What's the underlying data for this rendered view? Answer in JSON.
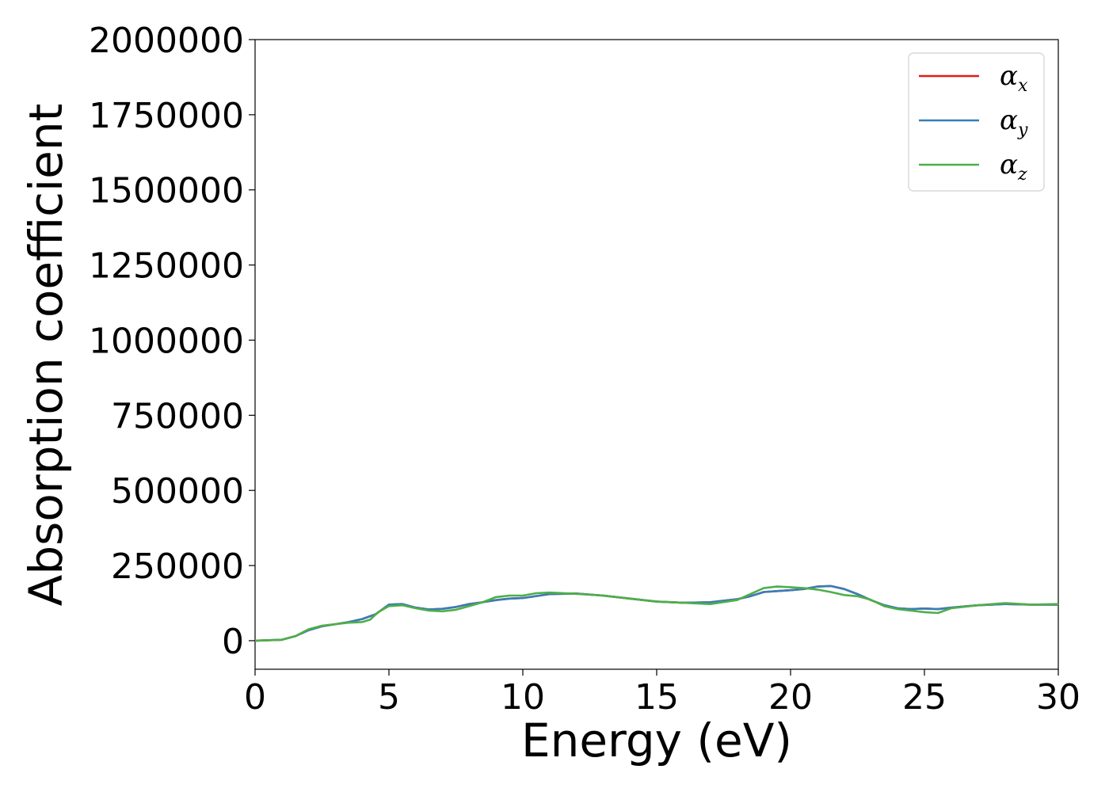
{
  "chart_data": {
    "type": "line",
    "xlabel": "Energy (eV)",
    "ylabel": "Absorption coefficient",
    "xlim": [
      0,
      30
    ],
    "ylim": [
      -95000,
      2000000
    ],
    "xticks": [
      "0",
      "5",
      "10",
      "15",
      "20",
      "25",
      "30"
    ],
    "yticks": [
      "0",
      "250000",
      "500000",
      "750000",
      "1000000",
      "1250000",
      "1500000",
      "1750000",
      "2000000"
    ],
    "grid": false,
    "legend_position": "top-right",
    "series": [
      {
        "name": "α_x",
        "label_base": "α",
        "label_sub": "x",
        "color": "#e41a1c",
        "x": [
          0,
          1,
          1.5,
          2,
          2.5,
          3,
          3.5,
          4,
          4.5,
          5,
          5.5,
          6,
          6.5,
          7,
          7.5,
          8,
          8.5,
          9,
          9.5,
          10,
          11,
          12,
          13,
          14,
          15,
          16,
          17,
          18,
          18.5,
          19,
          19.5,
          20,
          20.5,
          21,
          21.5,
          22,
          22.5,
          23,
          23.5,
          24,
          24.5,
          25,
          25.5,
          26,
          27,
          28,
          29,
          30
        ],
        "y": [
          0,
          3000,
          15000,
          35000,
          48000,
          55000,
          62000,
          72000,
          88000,
          120000,
          122000,
          110000,
          104000,
          106000,
          112000,
          122000,
          128000,
          135000,
          140000,
          142000,
          155000,
          157000,
          150000,
          140000,
          130000,
          126000,
          128000,
          138000,
          148000,
          162000,
          165000,
          168000,
          172000,
          180000,
          182000,
          172000,
          155000,
          135000,
          118000,
          108000,
          105000,
          107000,
          105000,
          110000,
          118000,
          122000,
          120000,
          120000
        ]
      },
      {
        "name": "α_y",
        "label_base": "α",
        "label_sub": "y",
        "color": "#377eb8",
        "x": [
          0,
          1,
          1.5,
          2,
          2.5,
          3,
          3.5,
          4,
          4.5,
          5,
          5.5,
          6,
          6.5,
          7,
          7.5,
          8,
          8.5,
          9,
          9.5,
          10,
          11,
          12,
          13,
          14,
          15,
          16,
          17,
          18,
          18.5,
          19,
          19.5,
          20,
          20.5,
          21,
          21.5,
          22,
          22.5,
          23,
          23.5,
          24,
          24.5,
          25,
          25.5,
          26,
          27,
          28,
          29,
          30
        ],
        "y": [
          0,
          3000,
          15000,
          35000,
          48000,
          55000,
          62000,
          72000,
          88000,
          120000,
          122000,
          110000,
          104000,
          106000,
          112000,
          122000,
          128000,
          135000,
          140000,
          142000,
          155000,
          157000,
          150000,
          140000,
          130000,
          126000,
          128000,
          138000,
          148000,
          162000,
          165000,
          168000,
          172000,
          180000,
          182000,
          172000,
          155000,
          135000,
          118000,
          108000,
          105000,
          107000,
          105000,
          110000,
          118000,
          122000,
          120000,
          120000
        ]
      },
      {
        "name": "α_z",
        "label_base": "α",
        "label_sub": "z",
        "color": "#4daf4a",
        "x": [
          0,
          1,
          1.5,
          2,
          2.5,
          3,
          3.5,
          4,
          4.3,
          4.6,
          5,
          5.5,
          6,
          6.5,
          7,
          7.5,
          8,
          8.5,
          9,
          9.5,
          10,
          10.5,
          11,
          12,
          13,
          14,
          15,
          16,
          17,
          18,
          18.5,
          19,
          19.5,
          20,
          20.5,
          21,
          21.5,
          22,
          22.5,
          23,
          23.5,
          24,
          24.5,
          25,
          25.5,
          26,
          27,
          28,
          29,
          30
        ],
        "y": [
          0,
          3000,
          15000,
          38000,
          50000,
          55000,
          60000,
          62000,
          70000,
          95000,
          115000,
          118000,
          108000,
          100000,
          98000,
          103000,
          115000,
          128000,
          145000,
          150000,
          150000,
          158000,
          160000,
          156000,
          150000,
          140000,
          130000,
          126000,
          122000,
          135000,
          155000,
          175000,
          180000,
          178000,
          175000,
          170000,
          162000,
          152000,
          148000,
          136000,
          115000,
          105000,
          100000,
          95000,
          92000,
          108000,
          118000,
          125000,
          120000,
          122000
        ]
      }
    ]
  }
}
